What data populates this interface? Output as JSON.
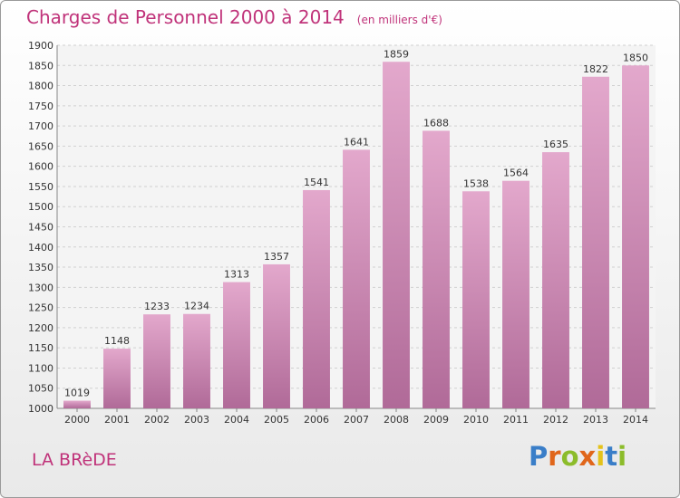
{
  "header": {
    "title": "Charges de Personnel 2000 à 2014",
    "subtitle": "(en milliers d'€)"
  },
  "footer": {
    "location": "LA BRèDE",
    "logo_text": "Proxiti"
  },
  "colors": {
    "accent": "#c0337a",
    "bar_top": "#e3a8cc",
    "bar_bottom": "#b06a98",
    "grid": "#d0d0d0"
  },
  "chart_data": {
    "type": "bar",
    "categories": [
      "2000",
      "2001",
      "2002",
      "2003",
      "2004",
      "2005",
      "2006",
      "2007",
      "2008",
      "2009",
      "2010",
      "2011",
      "2012",
      "2013",
      "2014"
    ],
    "values": [
      1019,
      1148,
      1233,
      1234,
      1313,
      1357,
      1541,
      1641,
      1859,
      1688,
      1538,
      1564,
      1635,
      1822,
      1850
    ],
    "title": "Charges de Personnel 2000 à 2014",
    "subtitle": "(en milliers d'€)",
    "ylim": [
      1000,
      1900
    ],
    "yticks": [
      1000,
      1050,
      1100,
      1150,
      1200,
      1250,
      1300,
      1350,
      1400,
      1450,
      1500,
      1550,
      1600,
      1650,
      1700,
      1750,
      1800,
      1850,
      1900
    ],
    "grid": true
  }
}
